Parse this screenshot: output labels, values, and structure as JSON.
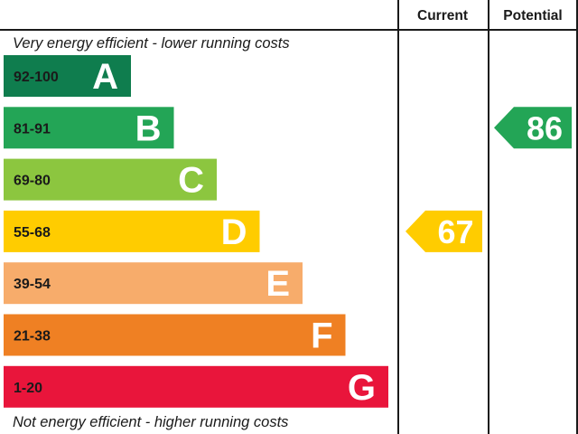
{
  "chart_data": {
    "type": "bar",
    "headers": {
      "current": "Current",
      "potential": "Potential"
    },
    "top_label": "Very energy efficient - lower running costs",
    "bottom_label": "Not energy efficient - higher running costs",
    "bands": [
      {
        "letter": "A",
        "range": "92-100",
        "color": "#0f7d4e",
        "range_color": "#ffffff"
      },
      {
        "letter": "B",
        "range": "81-91",
        "color": "#23a556",
        "range_color": "#1a1a1a"
      },
      {
        "letter": "C",
        "range": "69-80",
        "color": "#8cc63f",
        "range_color": "#1a1a1a"
      },
      {
        "letter": "D",
        "range": "55-68",
        "color": "#ffcc00",
        "range_color": "#1a1a1a"
      },
      {
        "letter": "E",
        "range": "39-54",
        "color": "#f7ac6b",
        "range_color": "#1a1a1a"
      },
      {
        "letter": "F",
        "range": "21-38",
        "color": "#ef8023",
        "range_color": "#1a1a1a"
      },
      {
        "letter": "G",
        "range": "1-20",
        "color": "#e9153b",
        "range_color": "#1a1a1a"
      }
    ],
    "current": {
      "value": 67,
      "band": "D",
      "color": "#ffcc00"
    },
    "potential": {
      "value": 86,
      "band": "B",
      "color": "#23a556"
    }
  }
}
